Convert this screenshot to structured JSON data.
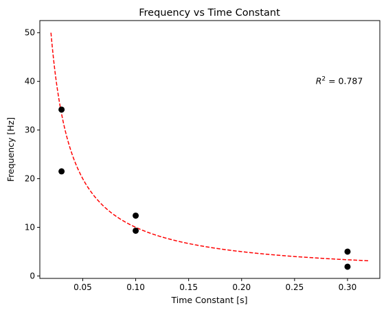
{
  "chart_data": {
    "type": "scatter",
    "title": "Frequency vs Time Constant",
    "xlabel": "Time Constant [s]",
    "ylabel": "Frequency [Hz]",
    "xlim": [
      0.0095,
      0.3305
    ],
    "ylim": [
      -0.5,
      52.5
    ],
    "xticks": [
      0.05,
      0.1,
      0.15,
      0.2,
      0.25,
      0.3
    ],
    "xtick_labels": [
      "0.05",
      "0.10",
      "0.15",
      "0.20",
      "0.25",
      "0.30"
    ],
    "yticks": [
      0,
      10,
      20,
      30,
      40,
      50
    ],
    "ytick_labels": [
      "0",
      "10",
      "20",
      "30",
      "40",
      "50"
    ],
    "grid": false,
    "series": [
      {
        "kind": "points",
        "color": "#000000",
        "points": [
          {
            "x": 0.03,
            "y": 34.2
          },
          {
            "x": 0.03,
            "y": 21.5
          },
          {
            "x": 0.1,
            "y": 12.4
          },
          {
            "x": 0.1,
            "y": 9.3
          },
          {
            "x": 0.3,
            "y": 5.0
          },
          {
            "x": 0.3,
            "y": 1.9
          }
        ]
      },
      {
        "kind": "fit-curve",
        "style": "dashed",
        "color": "#ff0000",
        "model": "a / x",
        "a": 1.0,
        "x_range": [
          0.02,
          0.32
        ]
      }
    ],
    "annotation": {
      "r2_symbol": "R",
      "r2_sup": "2",
      "r2_text": " = 0.787",
      "x": 0.27,
      "y": 40
    }
  }
}
